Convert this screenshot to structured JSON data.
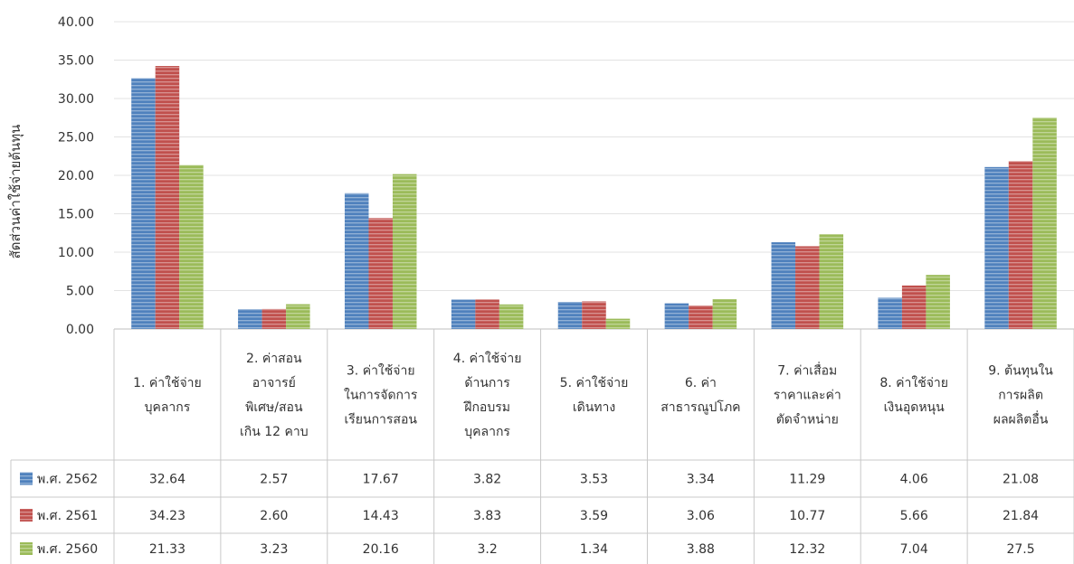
{
  "chart_data": {
    "type": "bar",
    "ylabel": "สัดส่วนค่าใช้จ่ายต้นทุน",
    "ylim": [
      0,
      40
    ],
    "yticks": [
      "0.00",
      "5.00",
      "10.00",
      "15.00",
      "20.00",
      "25.00",
      "30.00",
      "35.00",
      "40.00"
    ],
    "grid": true,
    "legend": "data-table-left",
    "categories": [
      [
        "1.  ค่าใช้จ่าย",
        "บุคลากร"
      ],
      [
        "2. ค่าสอน",
        "อาจารย์",
        "พิเศษ/สอน",
        "เกิน 12 คาบ"
      ],
      [
        "3. ค่าใช้จ่าย",
        "ในการจัดการ",
        "เรียนการสอน"
      ],
      [
        "4. ค่าใช้จ่าย",
        "ด้านการ",
        "ฝึกอบรม",
        "บุคลากร"
      ],
      [
        "5. ค่าใช้จ่าย",
        "เดินทาง"
      ],
      [
        "6. ค่า",
        "สาธารณูปโภค"
      ],
      [
        "7. ค่าเสื่อม",
        "ราคาและค่า",
        "ตัดจำหน่าย"
      ],
      [
        "8. ค่าใช้จ่าย",
        "เงินอุดหนุน"
      ],
      [
        "9. ต้นทุนใน",
        "การผลิต",
        "ผลผลิตอื่น"
      ]
    ],
    "series": [
      {
        "name": "พ.ศ. 2562",
        "color": "#4f81bd",
        "values": [
          32.64,
          2.57,
          17.67,
          3.82,
          3.53,
          3.34,
          11.29,
          4.06,
          21.08
        ],
        "labels": [
          "32.64",
          "2.57",
          "17.67",
          "3.82",
          "3.53",
          "3.34",
          "11.29",
          "4.06",
          "21.08"
        ]
      },
      {
        "name": "พ.ศ. 2561",
        "color": "#c0504d",
        "values": [
          34.23,
          2.6,
          14.43,
          3.83,
          3.59,
          3.06,
          10.77,
          5.66,
          21.84
        ],
        "labels": [
          "34.23",
          "2.60",
          "14.43",
          "3.83",
          "3.59",
          "3.06",
          "10.77",
          "5.66",
          "21.84"
        ]
      },
      {
        "name": "พ.ศ. 2560",
        "color": "#9bbb59",
        "values": [
          21.33,
          3.23,
          20.16,
          3.2,
          1.34,
          3.88,
          12.32,
          7.04,
          27.5
        ],
        "labels": [
          "21.33",
          "3.23",
          "20.16",
          "3.2",
          "1.34",
          "3.88",
          "12.32",
          "7.04",
          "27.5"
        ]
      }
    ]
  }
}
